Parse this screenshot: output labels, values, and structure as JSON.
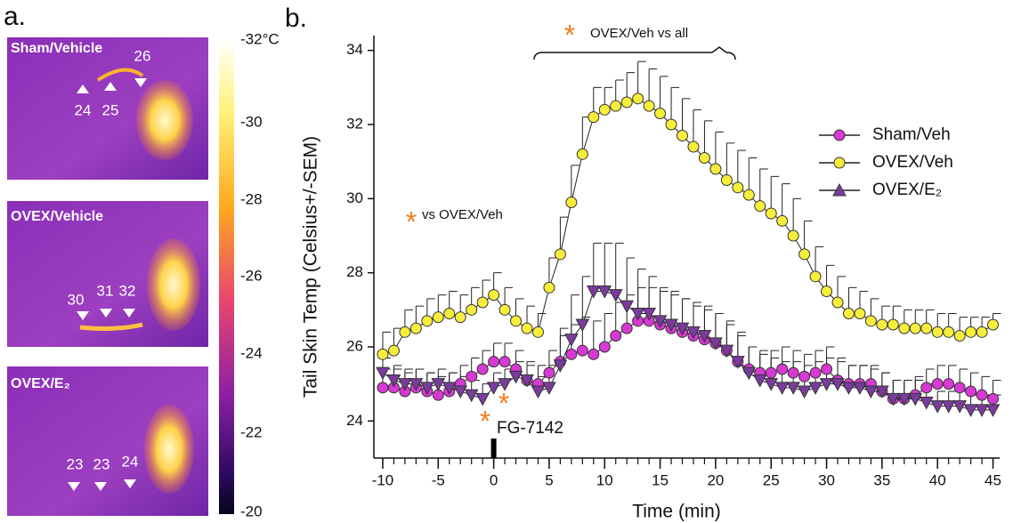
{
  "panel_a": {
    "label": "a.",
    "colorbar_labels": [
      "-32°C",
      "-30",
      "-28",
      "-26",
      "-24",
      "-22",
      "-20"
    ],
    "images": [
      {
        "title": "Sham/Vehicle",
        "readings": [
          "24",
          "25",
          "26"
        ]
      },
      {
        "title": "OVEX/Vehicle",
        "readings": [
          "30",
          "31",
          "32"
        ]
      },
      {
        "title": "OVEX/E₂",
        "readings": [
          "23",
          "23",
          "24"
        ]
      }
    ]
  },
  "chart_data": {
    "type": "line",
    "panel_label": "b.",
    "x_label": "Time (min)",
    "y_label": "Tail Skin Temp (Celsius+/-SEM)",
    "asterisk": "*",
    "annotations": [
      "OVEX/Veh vs all",
      "vs OVEX/Veh",
      "FG-7142"
    ],
    "x": [
      -10,
      -9,
      -8,
      -7,
      -6,
      -5,
      -4,
      -3,
      -2,
      -1,
      0,
      1,
      2,
      3,
      4,
      5,
      6,
      7,
      8,
      9,
      10,
      11,
      12,
      13,
      14,
      15,
      16,
      17,
      18,
      19,
      20,
      21,
      22,
      23,
      24,
      25,
      26,
      27,
      28,
      29,
      30,
      31,
      32,
      33,
      34,
      35,
      36,
      37,
      38,
      39,
      40,
      41,
      42,
      43,
      44,
      45
    ],
    "xlim": [
      -10.8,
      45.6
    ],
    "xticks": [
      -10,
      -5,
      0,
      5,
      10,
      15,
      20,
      25,
      30,
      35,
      40,
      45
    ],
    "ylim": [
      23,
      34.4
    ],
    "yticks": [
      24,
      26,
      28,
      30,
      32,
      34
    ],
    "legend": "upper right",
    "series": [
      {
        "name": "Sham/Veh",
        "color": "#d838d4",
        "marker": "circle",
        "values": [
          24.9,
          24.9,
          24.8,
          24.9,
          24.8,
          24.7,
          24.8,
          25.0,
          25.2,
          25.4,
          25.6,
          25.6,
          25.4,
          25.1,
          25.0,
          25.3,
          25.6,
          25.8,
          25.9,
          25.8,
          26.0,
          26.3,
          26.5,
          26.7,
          26.7,
          26.6,
          26.5,
          26.4,
          26.3,
          26.2,
          26.1,
          25.9,
          25.6,
          25.4,
          25.3,
          25.3,
          25.4,
          25.3,
          25.2,
          25.3,
          25.4,
          25.1,
          25.0,
          25.0,
          25.0,
          24.8,
          24.6,
          24.6,
          24.7,
          24.9,
          25.0,
          25.0,
          24.9,
          24.8,
          24.7,
          24.6
        ],
        "errors": [
          0.5,
          0.5,
          0.5,
          0.5,
          0.5,
          0.5,
          0.5,
          0.5,
          0.5,
          0.5,
          0.5,
          0.5,
          0.5,
          0.5,
          0.5,
          0.6,
          0.7,
          0.8,
          0.9,
          0.9,
          0.9,
          0.9,
          0.9,
          0.9,
          0.9,
          0.9,
          0.9,
          0.9,
          0.8,
          0.8,
          0.8,
          0.7,
          0.7,
          0.6,
          0.6,
          0.6,
          0.6,
          0.6,
          0.6,
          0.6,
          0.6,
          0.6,
          0.5,
          0.5,
          0.5,
          0.5,
          0.5,
          0.5,
          0.5,
          0.5,
          0.5,
          0.5,
          0.5,
          0.5,
          0.5,
          0.5
        ]
      },
      {
        "name": "OVEX/Veh",
        "color": "#f7ee3c",
        "marker": "circle",
        "values": [
          25.8,
          25.9,
          26.4,
          26.5,
          26.7,
          26.8,
          26.9,
          26.8,
          27.0,
          27.2,
          27.4,
          27.0,
          26.7,
          26.5,
          26.4,
          27.6,
          28.5,
          29.9,
          31.2,
          32.2,
          32.4,
          32.5,
          32.6,
          32.7,
          32.5,
          32.3,
          32.0,
          31.7,
          31.4,
          31.1,
          30.8,
          30.5,
          30.3,
          30.1,
          29.8,
          29.6,
          29.4,
          29.0,
          28.5,
          27.9,
          27.5,
          27.2,
          26.9,
          26.9,
          26.7,
          26.6,
          26.6,
          26.5,
          26.5,
          26.5,
          26.4,
          26.4,
          26.3,
          26.4,
          26.4,
          26.6
        ],
        "errors": [
          0.6,
          0.6,
          0.6,
          0.6,
          0.6,
          0.6,
          0.6,
          0.6,
          0.6,
          0.6,
          0.6,
          0.6,
          0.6,
          0.6,
          0.5,
          0.8,
          1.0,
          1.0,
          1.0,
          0.8,
          0.6,
          0.7,
          0.8,
          1.0,
          1.0,
          1.0,
          1.0,
          1.0,
          1.0,
          1.0,
          1.0,
          1.0,
          1.0,
          1.0,
          1.0,
          1.0,
          1.0,
          1.0,
          0.9,
          0.8,
          0.7,
          0.7,
          0.7,
          0.6,
          0.6,
          0.5,
          0.5,
          0.5,
          0.5,
          0.5,
          0.5,
          0.5,
          0.5,
          0.4,
          0.4,
          0.3
        ]
      },
      {
        "name": "OVEX/E₂",
        "color": "#7b3b9e",
        "marker": "triangle",
        "values": [
          25.3,
          25.1,
          25.0,
          25.0,
          24.9,
          25.0,
          24.9,
          24.8,
          24.7,
          24.6,
          24.9,
          25.0,
          25.2,
          25.1,
          24.8,
          24.9,
          25.5,
          26.2,
          26.6,
          27.5,
          27.5,
          27.4,
          27.1,
          26.9,
          26.9,
          26.7,
          26.6,
          26.5,
          26.4,
          26.3,
          26.1,
          25.9,
          25.6,
          25.3,
          25.1,
          25.0,
          24.9,
          24.9,
          24.8,
          24.9,
          25.0,
          25.0,
          24.9,
          24.9,
          24.8,
          24.8,
          24.6,
          24.6,
          24.6,
          24.5,
          24.4,
          24.4,
          24.4,
          24.3,
          24.3,
          24.3
        ],
        "errors": [
          0.4,
          0.4,
          0.4,
          0.4,
          0.4,
          0.4,
          0.4,
          0.4,
          0.4,
          0.4,
          0.4,
          0.4,
          0.4,
          0.4,
          0.4,
          0.6,
          1.0,
          1.2,
          1.3,
          1.3,
          1.3,
          1.4,
          1.3,
          1.2,
          1.0,
          0.9,
          0.9,
          0.8,
          0.8,
          0.8,
          0.8,
          0.8,
          0.8,
          0.7,
          0.7,
          0.7,
          0.7,
          0.7,
          0.7,
          0.7,
          0.7,
          0.6,
          0.6,
          0.6,
          0.6,
          0.5,
          0.5,
          0.5,
          0.5,
          0.5,
          0.4,
          0.4,
          0.4,
          0.4,
          0.4,
          0.4
        ]
      }
    ]
  }
}
